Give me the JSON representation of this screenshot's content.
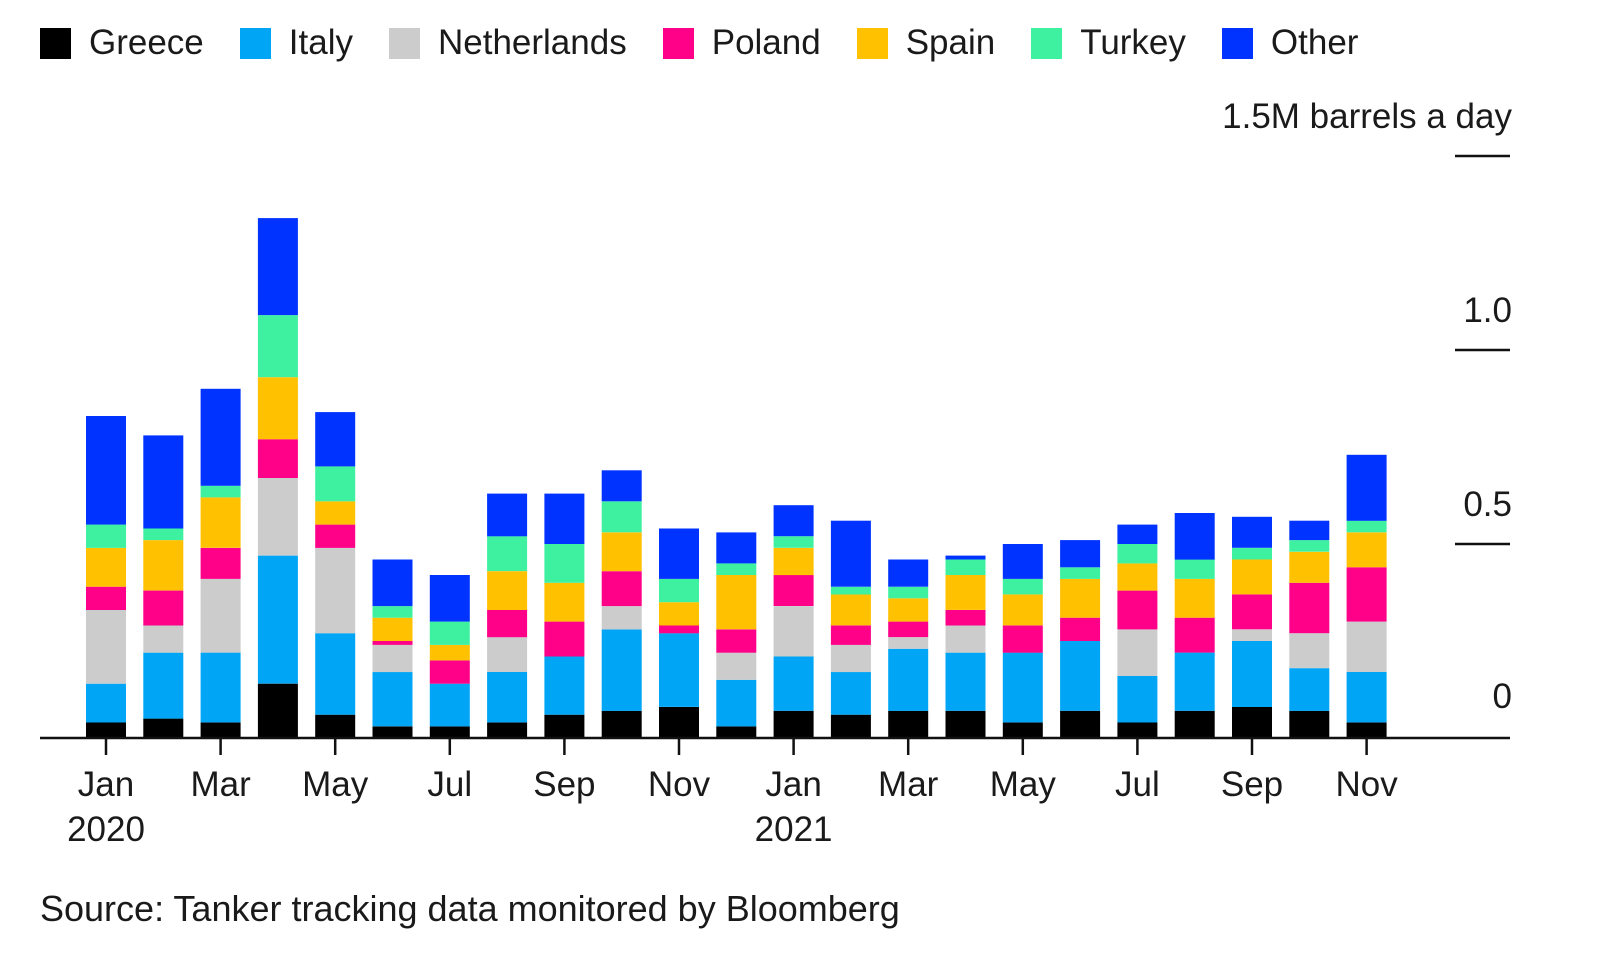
{
  "chart_data": {
    "type": "bar",
    "stacked": true,
    "unit_label": "1.5M barrels a day",
    "ylim": [
      0,
      1.5
    ],
    "yticks": [
      {
        "value": 0,
        "label": "0"
      },
      {
        "value": 0.5,
        "label": "0.5"
      },
      {
        "value": 1.0,
        "label": "1.0"
      },
      {
        "value": 1.5,
        "label": "1.5M barrels a day"
      }
    ],
    "x_tick_labels": [
      {
        "index": 0,
        "label": "Jan",
        "sublabel": "2020"
      },
      {
        "index": 2,
        "label": "Mar",
        "sublabel": ""
      },
      {
        "index": 4,
        "label": "May",
        "sublabel": ""
      },
      {
        "index": 6,
        "label": "Jul",
        "sublabel": ""
      },
      {
        "index": 8,
        "label": "Sep",
        "sublabel": ""
      },
      {
        "index": 10,
        "label": "Nov",
        "sublabel": ""
      },
      {
        "index": 12,
        "label": "Jan",
        "sublabel": "2021"
      },
      {
        "index": 14,
        "label": "Mar",
        "sublabel": ""
      },
      {
        "index": 16,
        "label": "May",
        "sublabel": ""
      },
      {
        "index": 18,
        "label": "Jul",
        "sublabel": ""
      },
      {
        "index": 20,
        "label": "Sep",
        "sublabel": ""
      },
      {
        "index": 22,
        "label": "Nov",
        "sublabel": ""
      }
    ],
    "categories": [
      "Jan 2020",
      "Feb 2020",
      "Mar 2020",
      "Apr 2020",
      "May 2020",
      "Jun 2020",
      "Jul 2020",
      "Aug 2020",
      "Sep 2020",
      "Oct 2020",
      "Nov 2020",
      "Dec 2020",
      "Jan 2021",
      "Feb 2021",
      "Mar 2021",
      "Apr 2021",
      "May 2021",
      "Jun 2021",
      "Jul 2021",
      "Aug 2021",
      "Sep 2021",
      "Oct 2021",
      "Nov 2021"
    ],
    "series": [
      {
        "name": "Greece",
        "color": "#000000",
        "values": [
          0.04,
          0.05,
          0.04,
          0.14,
          0.06,
          0.03,
          0.03,
          0.04,
          0.06,
          0.07,
          0.08,
          0.03,
          0.07,
          0.06,
          0.07,
          0.07,
          0.04,
          0.07,
          0.04,
          0.07,
          0.08,
          0.07,
          0.04
        ]
      },
      {
        "name": "Italy",
        "color": "#00a6f5",
        "values": [
          0.1,
          0.17,
          0.18,
          0.33,
          0.21,
          0.14,
          0.11,
          0.13,
          0.15,
          0.21,
          0.19,
          0.12,
          0.14,
          0.11,
          0.16,
          0.15,
          0.18,
          0.18,
          0.12,
          0.15,
          0.17,
          0.11,
          0.13
        ]
      },
      {
        "name": "Netherlands",
        "color": "#cccccc",
        "values": [
          0.19,
          0.07,
          0.19,
          0.2,
          0.22,
          0.07,
          0.0,
          0.09,
          0.0,
          0.06,
          0.0,
          0.07,
          0.13,
          0.07,
          0.03,
          0.07,
          0.0,
          0.0,
          0.12,
          0.0,
          0.03,
          0.09,
          0.13
        ]
      },
      {
        "name": "Poland",
        "color": "#ff0088",
        "values": [
          0.06,
          0.09,
          0.08,
          0.1,
          0.06,
          0.01,
          0.06,
          0.07,
          0.09,
          0.09,
          0.02,
          0.06,
          0.08,
          0.05,
          0.04,
          0.04,
          0.07,
          0.06,
          0.1,
          0.09,
          0.09,
          0.13,
          0.14
        ]
      },
      {
        "name": "Spain",
        "color": "#ffc100",
        "values": [
          0.1,
          0.13,
          0.13,
          0.16,
          0.06,
          0.06,
          0.04,
          0.1,
          0.1,
          0.1,
          0.06,
          0.14,
          0.07,
          0.08,
          0.06,
          0.09,
          0.08,
          0.1,
          0.07,
          0.1,
          0.09,
          0.08,
          0.09
        ]
      },
      {
        "name": "Turkey",
        "color": "#3ef1a1",
        "values": [
          0.06,
          0.03,
          0.03,
          0.16,
          0.09,
          0.03,
          0.06,
          0.09,
          0.1,
          0.08,
          0.06,
          0.03,
          0.03,
          0.02,
          0.03,
          0.04,
          0.04,
          0.03,
          0.05,
          0.05,
          0.03,
          0.03,
          0.03
        ]
      },
      {
        "name": "Other",
        "color": "#0033ff",
        "values": [
          0.28,
          0.24,
          0.25,
          0.25,
          0.14,
          0.12,
          0.12,
          0.11,
          0.13,
          0.08,
          0.13,
          0.08,
          0.08,
          0.17,
          0.07,
          0.01,
          0.09,
          0.07,
          0.05,
          0.12,
          0.08,
          0.05,
          0.17
        ]
      }
    ]
  },
  "source_text": "Source: Tanker tracking data monitored by Bloomberg"
}
